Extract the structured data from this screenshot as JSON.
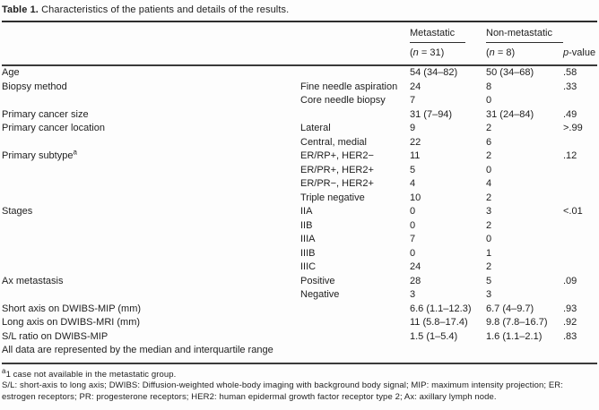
{
  "table": {
    "title_bold": "Table 1.",
    "title_rest": " Characteristics of the patients and details of the results.",
    "header": {
      "group1": "Metastatic",
      "group1_count_pre": "(",
      "group1_count_n": "n",
      "group1_count_post": " = 31)",
      "group2": "Non-metastatic",
      "group2_count_pre": "(",
      "group2_count_n": "n",
      "group2_count_post": " = 8)",
      "pvalue_italic": "p",
      "pvalue_rest": "-value"
    },
    "rows": [
      {
        "label": "Age",
        "sub": "",
        "m": "54 (34–82)",
        "nm": "50 (34–68)",
        "p": ".58"
      },
      {
        "label": "Biopsy method",
        "sub": "Fine needle aspiration",
        "m": "24",
        "nm": "8",
        "p": ".33"
      },
      {
        "label": "",
        "sub": "Core needle biopsy",
        "m": "7",
        "nm": "0",
        "p": ""
      },
      {
        "label": "Primary cancer size",
        "sub": "",
        "m": "31 (7–94)",
        "nm": "31 (24–84)",
        "p": ".49"
      },
      {
        "label": "Primary cancer location",
        "sub": "Lateral",
        "m": "9",
        "nm": "2",
        "p": ">.99"
      },
      {
        "label": "",
        "sub": "Central, medial",
        "m": "22",
        "nm": "6",
        "p": ""
      },
      {
        "label": "Primary subtype",
        "label_sup": "a",
        "sub": "ER/RP+, HER2−",
        "m": "11",
        "nm": "2",
        "p": ".12"
      },
      {
        "label": "",
        "sub": "ER/PR+, HER2+",
        "m": "5",
        "nm": "0",
        "p": ""
      },
      {
        "label": "",
        "sub": "ER/PR−, HER2+",
        "m": "4",
        "nm": "4",
        "p": ""
      },
      {
        "label": "",
        "sub": "Triple negative",
        "m": "10",
        "nm": "2",
        "p": ""
      },
      {
        "label": "Stages",
        "sub": "IIA",
        "m": "0",
        "nm": "3",
        "p": "<.01"
      },
      {
        "label": "",
        "sub": "IIB",
        "m": "0",
        "nm": "2",
        "p": ""
      },
      {
        "label": "",
        "sub": "IIIA",
        "m": "7",
        "nm": "0",
        "p": ""
      },
      {
        "label": "",
        "sub": "IIIB",
        "m": "0",
        "nm": "1",
        "p": ""
      },
      {
        "label": "",
        "sub": "IIIC",
        "m": "24",
        "nm": "2",
        "p": ""
      },
      {
        "label": "Ax metastasis",
        "sub": "Positive",
        "m": "28",
        "nm": "5",
        "p": ".09"
      },
      {
        "label": "",
        "sub": "Negative",
        "m": "3",
        "nm": "3",
        "p": ""
      },
      {
        "label": "Short axis on DWIBS-MIP (mm)",
        "sub": "",
        "m": "6.6 (1.1–12.3)",
        "nm": "6.7 (4–9.7)",
        "p": ".93"
      },
      {
        "label": "Long axis on DWIBS-MRI (mm)",
        "sub": "",
        "m": "11 (5.8–17.4)",
        "nm": "9.8 (7.8–16.7)",
        "p": ".92"
      },
      {
        "label": "S/L ratio on DWIBS-MIP",
        "sub": "",
        "m": "1.5 (1–5.4)",
        "nm": "1.6 (1.1–2.1)",
        "p": ".83"
      },
      {
        "full": "All data are represented by the median and interquartile range"
      }
    ],
    "footnote1_sup": "a",
    "footnote1": "1 case not available in the metastatic group.",
    "footnote2": "S/L: short-axis to long axis; DWIBS: Diffusion-weighted whole-body imaging with background body signal; MIP: maximum intensity projection; ER: estrogen receptors; PR: progesterone receptors; HER2: human epidermal growth factor receptor type 2; Ax: axillary lymph node."
  }
}
